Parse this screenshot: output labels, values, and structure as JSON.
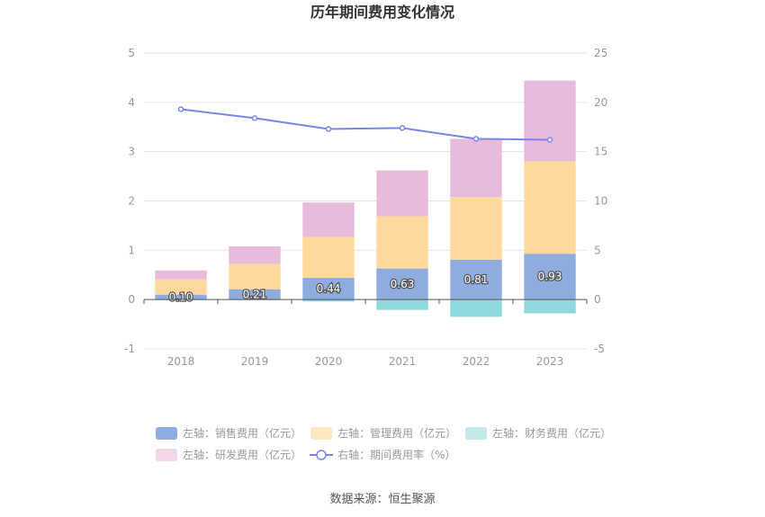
{
  "title": "历年期间费用变化情况",
  "source_text": "数据来源：恒生聚源",
  "chart_data": {
    "type": "bar",
    "categories": [
      "2018",
      "2019",
      "2020",
      "2021",
      "2022",
      "2023"
    ],
    "series": [
      {
        "name": "左轴：销售费用（亿元）",
        "axis": "left",
        "type": "bar",
        "color": "#8eadde",
        "values": [
          0.1,
          0.21,
          0.44,
          0.63,
          0.81,
          0.93
        ],
        "labels": [
          "0.10",
          "0.21",
          "0.44",
          "0.63",
          "0.81",
          "0.93"
        ]
      },
      {
        "name": "左轴：管理费用（亿元）",
        "axis": "left",
        "type": "bar",
        "color": "#ffd99b",
        "values": [
          0.31,
          0.51,
          0.83,
          1.06,
          1.27,
          1.87
        ]
      },
      {
        "name": "左轴：财务费用（亿元）",
        "axis": "left",
        "type": "bar",
        "color": "#8dd9dc",
        "values": [
          -0.01,
          -0.01,
          -0.04,
          -0.21,
          -0.35,
          -0.28
        ]
      },
      {
        "name": "左轴：研发费用（亿元）",
        "axis": "left",
        "type": "bar",
        "color": "#e8bbdb",
        "values": [
          0.18,
          0.36,
          0.7,
          0.93,
          1.18,
          1.64
        ]
      },
      {
        "name": "右轴：期间费用率（%）",
        "axis": "right",
        "type": "line",
        "color": "#7b84ea",
        "values": [
          19.3,
          18.4,
          17.3,
          17.4,
          16.3,
          16.2
        ]
      }
    ],
    "y_left": {
      "min": -1,
      "max": 5,
      "ticks": [
        "-1",
        "0",
        "1",
        "2",
        "3",
        "4",
        "5"
      ]
    },
    "y_right": {
      "min": -5,
      "max": 25,
      "ticks": [
        "-5",
        "0",
        "5",
        "10",
        "15",
        "20",
        "25"
      ]
    },
    "grid": true,
    "legend_position": "bottom"
  }
}
